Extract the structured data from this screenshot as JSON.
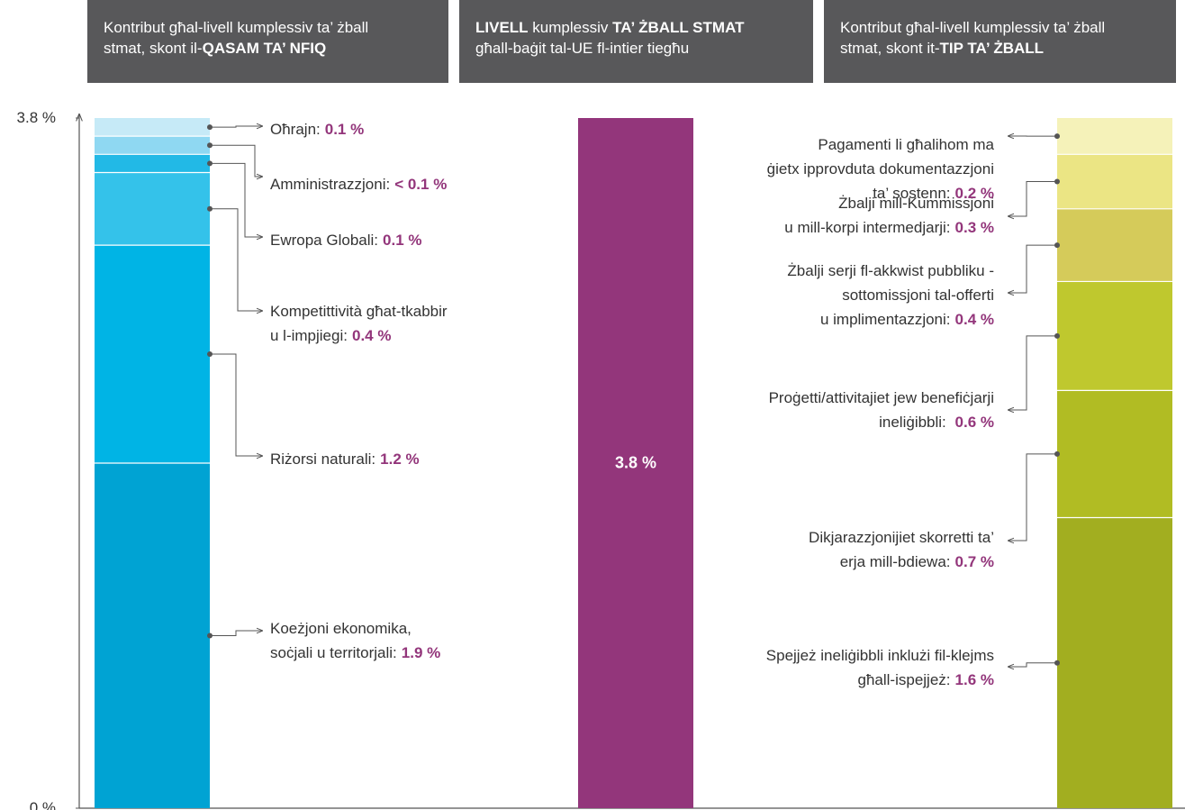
{
  "chart_data": {
    "type": "stacked_bar",
    "ylim": [
      0,
      3.8
    ],
    "yticks": [
      {
        "value": 0,
        "label": "0 %"
      },
      {
        "value": 3.8,
        "label": "3.8 %"
      }
    ],
    "panels": [
      {
        "header": [
          "Kontribut għal-livell kumplessiv ta’ żball\nstmat, skont il-",
          "QASAM TA’ NFIQ"
        ],
        "bold": [
          1
        ],
        "categories": [
          "Koeżjoni ekonomika,\nsoċjali u territorjali:",
          "Riżorsi naturali:",
          "Kompetittività għat-tkabbir\nu l-impjiegi:",
          "Ewropa Globali:",
          "Amministrazzjoni:",
          "Oħrajn:"
        ],
        "values": [
          1.9,
          1.2,
          0.4,
          0.1,
          0.1,
          0.1
        ],
        "value_labels": [
          "1.9 %",
          "1.2 %",
          "0.4 %",
          "0.1 %",
          "< 0.1 %",
          "0.1 %"
        ],
        "colors": [
          "#00a3d3",
          "#00b4e5",
          "#34c2ea",
          "#22b9e6",
          "#8fd8f2",
          "#c6eaf7"
        ]
      },
      {
        "header": [
          "LIVELL",
          " kumplessiv ",
          "TA’ ŻBALL STMAT",
          "\ngħall-baġit tal-UE fl-intier tiegħu"
        ],
        "bold": [
          0,
          2
        ],
        "values": [
          3.8
        ],
        "value_labels": [
          "3.8 %"
        ],
        "colors": [
          "#93367b"
        ]
      },
      {
        "header": [
          "Kontribut għal-livell kumplessiv ta’ żball\nstmat, skont it-",
          "TIP TA’ ŻBALL"
        ],
        "bold": [
          1
        ],
        "categories": [
          "Spejjeż ineliġibbli inklużi fil-klejms\ngħall-ispejjeż:",
          "Dikjarazzjonijiet skorretti ta’\nerja mill-bdiewa:",
          "Proġetti/attivitajiet jew benefiċjarji\nineliġibbli: ",
          "Żbalji serji fl-akkwist pubbliku -\nsottomissjoni tal-offerti\nu implimentazzjoni:",
          "Żbalji mill-Kummissjoni\nu mill-korpi intermedjarji:",
          "Pagamenti li għalihom ma\nġietx ipprovduta dokumentazzjoni\nta’ sostenn:"
        ],
        "values": [
          1.6,
          0.7,
          0.6,
          0.4,
          0.3,
          0.2
        ],
        "value_labels": [
          "1.6 %",
          "0.7 %",
          "0.6 %",
          "0.4 %",
          "0.3 %",
          "0.2 %"
        ],
        "colors": [
          "#a2ae20",
          "#b1bc23",
          "#bfc82e",
          "#d5cb5a",
          "#ebe584",
          "#f5f2b9"
        ]
      }
    ]
  }
}
